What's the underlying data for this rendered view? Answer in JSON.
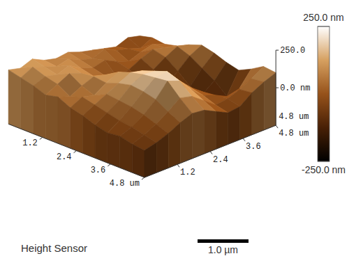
{
  "chart_data": {
    "type": "surface3d",
    "title": "Height Sensor",
    "xlim": [
      0,
      4.8
    ],
    "xticks": [
      1.2,
      2.4,
      3.6,
      {
        "value": 4.8,
        "label": "4.8 um"
      }
    ],
    "ylim": [
      0,
      4.8
    ],
    "yticks": [
      1.2,
      2.4,
      3.6,
      {
        "value": 4.8,
        "label": "4.8 um"
      }
    ],
    "zlim": [
      -250,
      250
    ],
    "zticks": [
      {
        "value": 0,
        "label": "0.0 nm"
      },
      {
        "value": 250,
        "label": "250.0"
      }
    ],
    "back_label": "4.8 um",
    "heights": [
      [
        110,
        90,
        120,
        80,
        60,
        70,
        40,
        20,
        0,
        -20,
        10,
        -10
      ],
      [
        90,
        130,
        100,
        70,
        90,
        50,
        30,
        60,
        20,
        0,
        -30,
        10
      ],
      [
        70,
        100,
        80,
        110,
        60,
        30,
        50,
        10,
        -20,
        10,
        30,
        0
      ],
      [
        40,
        80,
        120,
        90,
        40,
        10,
        -30,
        -10,
        30,
        60,
        40,
        20
      ],
      [
        60,
        30,
        70,
        100,
        80,
        30,
        -20,
        -60,
        -10,
        40,
        80,
        60
      ],
      [
        20,
        60,
        40,
        90,
        130,
        90,
        20,
        -40,
        -80,
        -20,
        50,
        90
      ],
      [
        0,
        40,
        80,
        120,
        160,
        140,
        60,
        -10,
        -60,
        -90,
        0,
        70
      ],
      [
        -30,
        20,
        70,
        140,
        180,
        170,
        90,
        20,
        -40,
        -110,
        -50,
        40
      ],
      [
        -50,
        0,
        60,
        130,
        190,
        200,
        110,
        30,
        -30,
        -100,
        -120,
        20
      ],
      [
        -40,
        -10,
        40,
        110,
        200,
        170,
        80,
        10,
        -20,
        -60,
        -40,
        60
      ],
      [
        -60,
        -30,
        10,
        60,
        120,
        100,
        40,
        -20,
        -10,
        20,
        60,
        110
      ],
      [
        -70,
        -50,
        -20,
        20,
        50,
        40,
        0,
        -40,
        -30,
        30,
        70,
        100
      ]
    ],
    "colorbar": {
      "range": [
        -250,
        250
      ],
      "ticks": [
        {
          "value": 250,
          "label": "250.0 nm"
        },
        {
          "value": -250,
          "label": "-250.0 nm"
        }
      ]
    },
    "scale_bar": {
      "length": 1.0,
      "label": "1.0 µm"
    }
  }
}
